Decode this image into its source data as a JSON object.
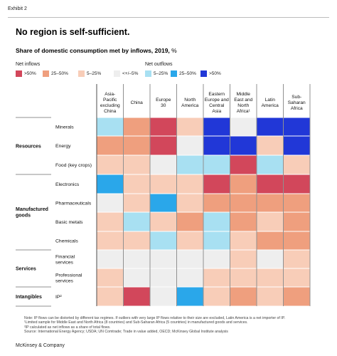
{
  "exhibit": "Exhibit 2",
  "title": "No region is self-sufficient.",
  "subtitle": {
    "main": "Share of domestic consumption met by inflows, 2019,",
    "unit": "%"
  },
  "legend": {
    "inflows_label": "Net inflows",
    "outflows_label": "Net outflows",
    "items": [
      {
        "label": ">50%",
        "color": "#d2475b"
      },
      {
        "label": "25–50%",
        "color": "#ef9f7e"
      },
      {
        "label": "5–25%",
        "color": "#f8cdb8"
      },
      {
        "label": "<+/–5%",
        "color": "#eeeeee"
      },
      {
        "label": "5–25%",
        "color": "#a8e0f2"
      },
      {
        "label": "25–50%",
        "color": "#2aa7ea"
      },
      {
        "label": ">50%",
        "color": "#2137d7"
      }
    ]
  },
  "chart_data": {
    "type": "heatmap",
    "columns": [
      [
        "Asia-",
        "Pacific",
        "excluding",
        "China"
      ],
      [
        "China"
      ],
      [
        "Europe",
        "30"
      ],
      [
        "North",
        "America"
      ],
      [
        "Eastern",
        "Europe and",
        "Central",
        "Asia"
      ],
      [
        "Middle",
        "East and",
        "North",
        "Africa¹"
      ],
      [
        "Latin",
        "America"
      ],
      [
        "Sub-",
        "Saharan",
        "Africa"
      ]
    ],
    "groups": [
      {
        "label": [
          "Resources"
        ],
        "rows": [
          0,
          1,
          2
        ]
      },
      {
        "label": [
          "Manufactured",
          "goods"
        ],
        "rows": [
          3,
          4,
          5,
          6
        ]
      },
      {
        "label": [
          "Services"
        ],
        "rows": [
          7,
          8
        ]
      },
      {
        "label": [
          "Intangibles"
        ],
        "rows": [
          9
        ]
      }
    ],
    "rows": [
      {
        "label": [
          "Minerals"
        ],
        "cells": [
          "o1",
          "i2",
          "i3",
          "i1",
          "o3",
          "n",
          "o3",
          "o3"
        ]
      },
      {
        "label": [
          "Energy"
        ],
        "cells": [
          "i2",
          "i2",
          "i3",
          "n",
          "o3",
          "o3",
          "i1",
          "o3"
        ]
      },
      {
        "label": [
          "Food (key crops)"
        ],
        "cells": [
          "i1",
          "i1",
          "n",
          "o1",
          "o1",
          "i3",
          "o1",
          "i1"
        ]
      },
      {
        "label": [
          "Electronics"
        ],
        "cells": [
          "o2",
          "i1",
          "i1",
          "i1",
          "i3",
          "i2",
          "i3",
          "i3"
        ]
      },
      {
        "label": [
          "Pharmaceuticals"
        ],
        "cells": [
          "n",
          "i1",
          "o2",
          "i1",
          "i2",
          "i2",
          "i2",
          "i2"
        ]
      },
      {
        "label": [
          "Basic metals"
        ],
        "cells": [
          "i1",
          "o1",
          "i1",
          "i2",
          "o1",
          "i2",
          "i1",
          "i2"
        ]
      },
      {
        "label": [
          "Chemicals"
        ],
        "cells": [
          "i1",
          "i1",
          "o1",
          "i1",
          "o1",
          "i1",
          "i2",
          "i2"
        ]
      },
      {
        "label": [
          "Financial",
          "services"
        ],
        "cells": [
          "n",
          "n",
          "n",
          "n",
          "n",
          "i1",
          "n",
          "i1"
        ]
      },
      {
        "label": [
          "Professional",
          "services"
        ],
        "cells": [
          "i1",
          "n",
          "n",
          "n",
          "i1",
          "i1",
          "i1",
          "i1"
        ]
      },
      {
        "label": [
          "IP²"
        ],
        "cells": [
          "i1",
          "i3",
          "n",
          "o2",
          "i1",
          "i2",
          "i1",
          "i2"
        ]
      }
    ],
    "category_colors": {
      "i3": "#d2475b",
      "i2": "#ef9f7e",
      "i1": "#f8cdb8",
      "n": "#eeeeee",
      "o1": "#a8e0f2",
      "o2": "#2aa7ea",
      "o3": "#2137d7"
    }
  },
  "footnotes": [
    "Note: IP flows can be distorted by different tax regimes. If outliers with very large IP flows relative to their size are excluded, Latin America is a net importer of IP.",
    "¹Limited sample for Middle East and North Africa (8 countries) and Sub-Saharan Africa (5 countries) in manufactured goods and services.",
    "²IP calculated as net inflows as a share of total flows.",
    "Source: International Energy Agency; USDA; UN Comtrade; Trade in value added, OECD; McKinsey Global Institute analysis"
  ],
  "brand": "McKinsey & Company"
}
